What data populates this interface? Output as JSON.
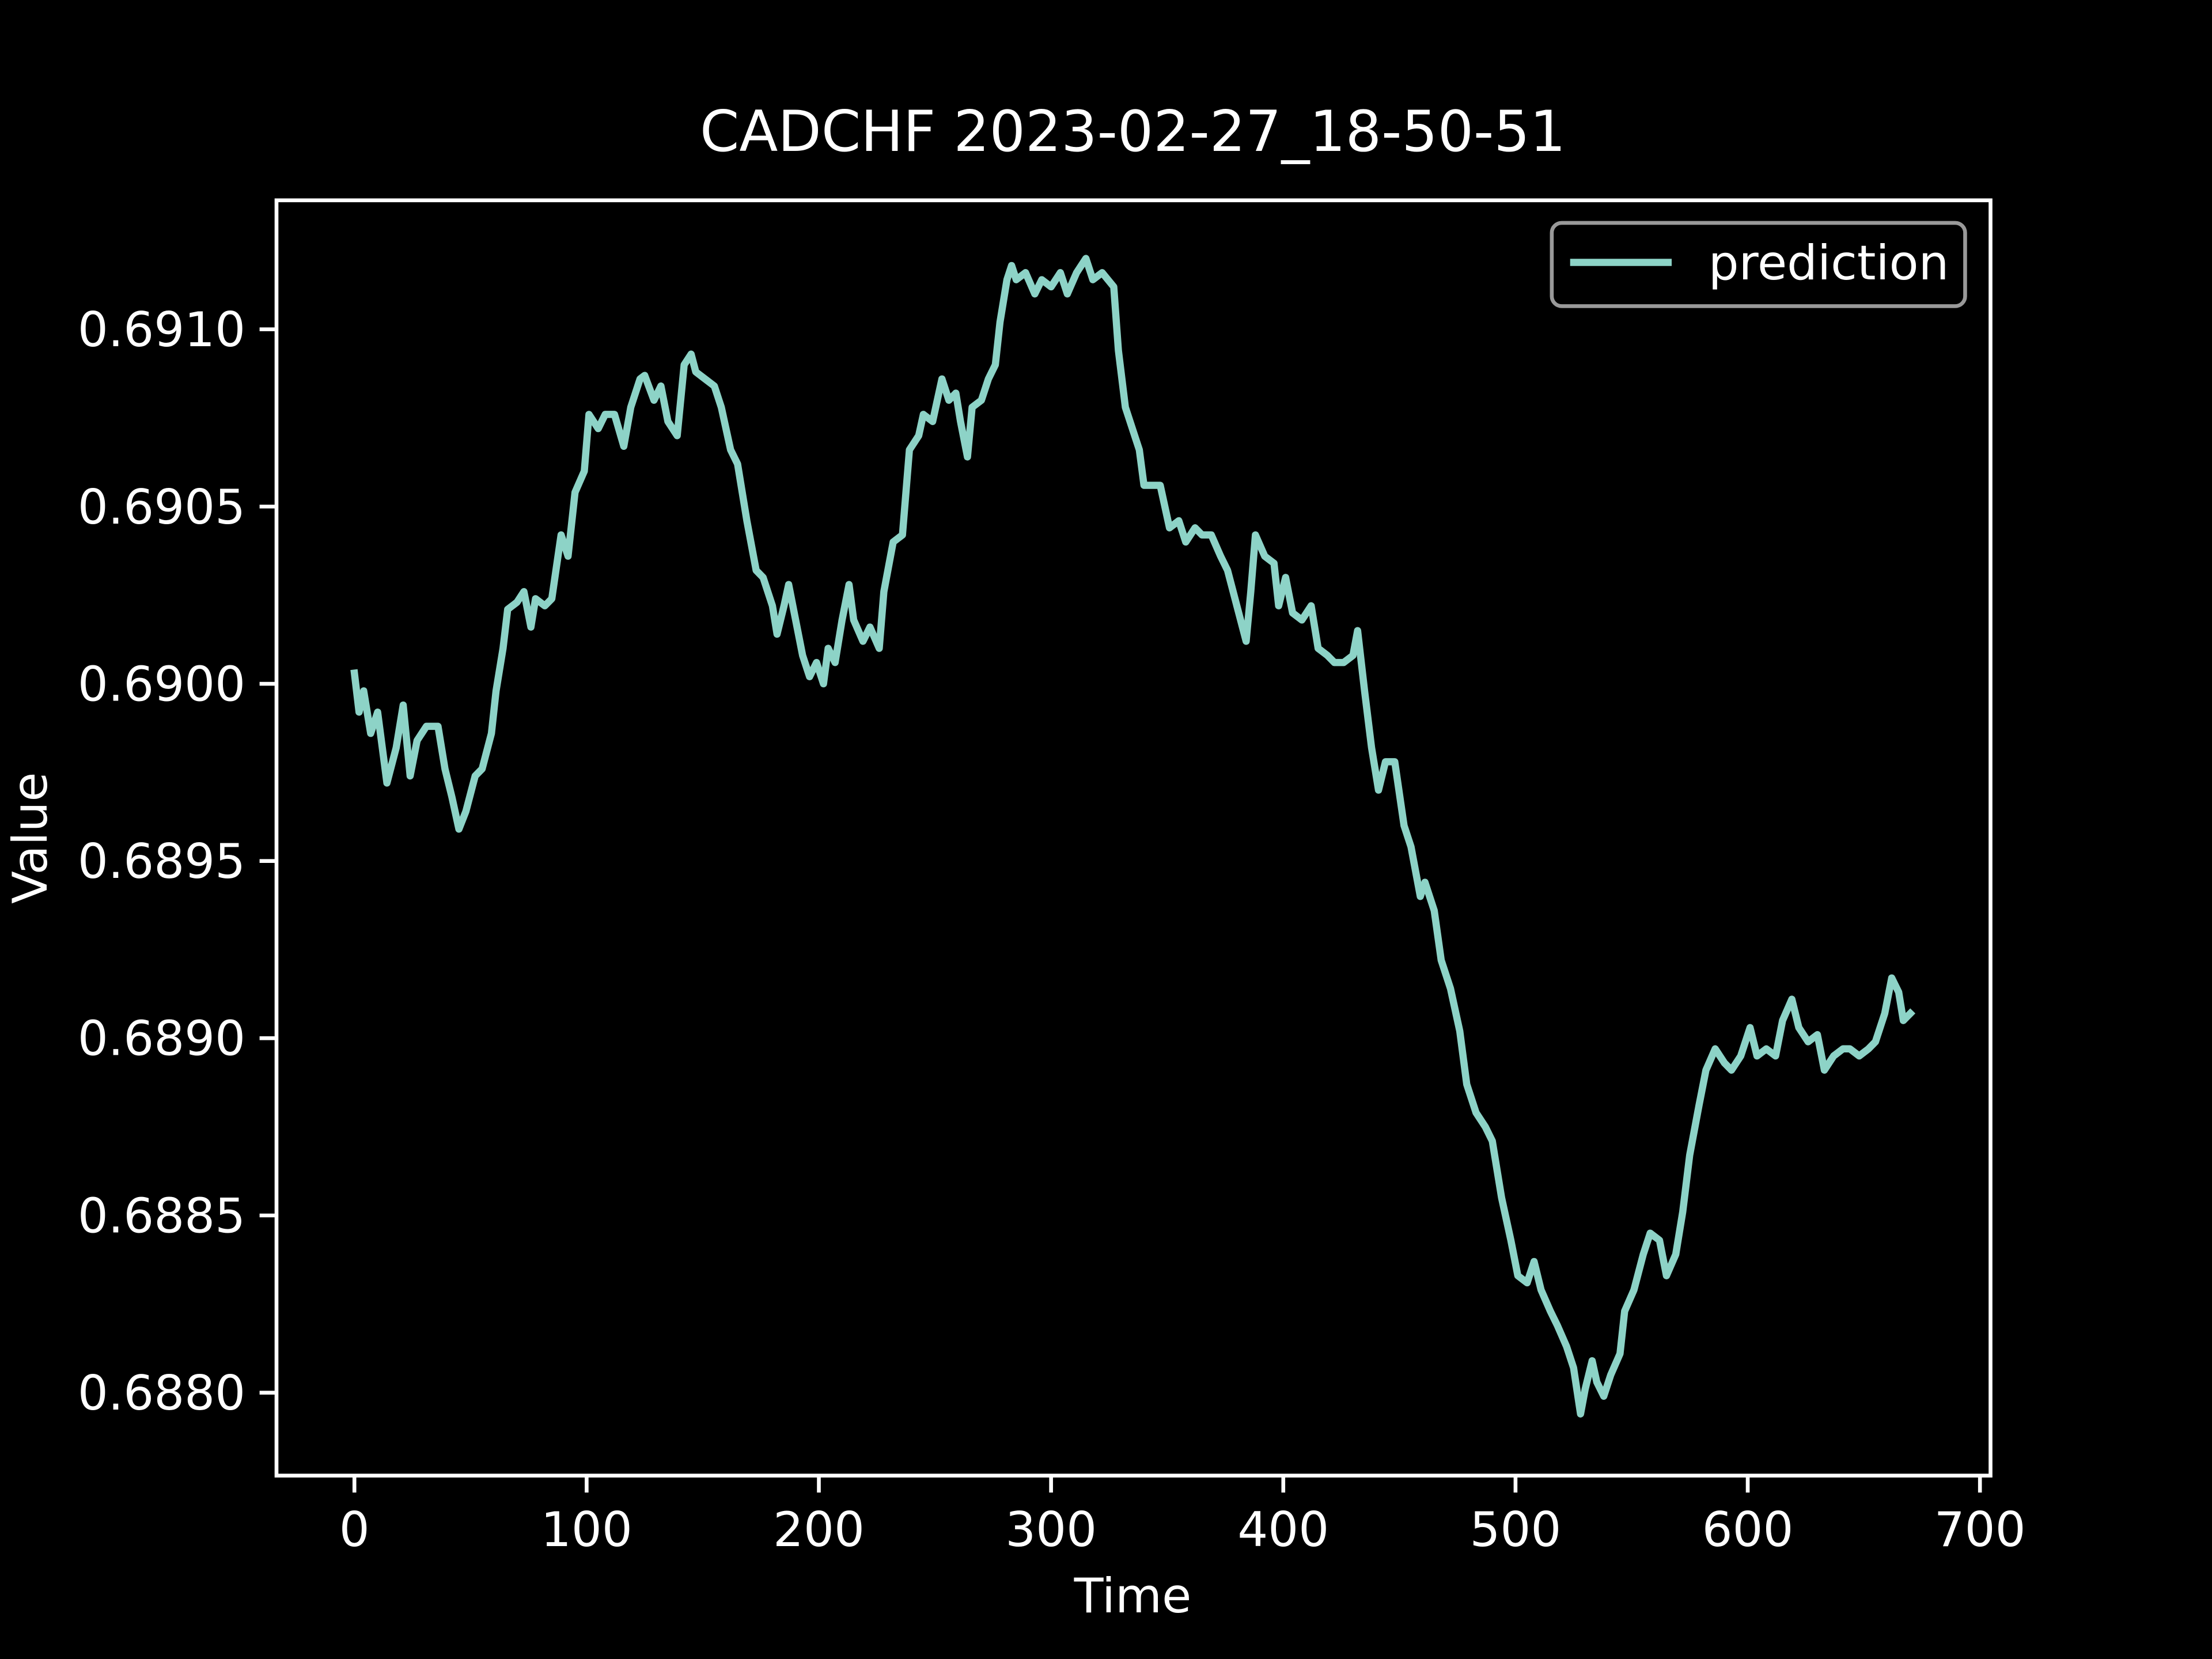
{
  "chart_data": {
    "type": "line",
    "title": "CADCHF 2023-02-27_18-50-51",
    "xlabel": "Time",
    "ylabel": "Value",
    "legend": "upper right",
    "grid": false,
    "xlim": [
      -33.55,
      704.55
    ],
    "xticks": [
      0,
      100,
      200,
      300,
      400,
      500,
      600,
      700
    ],
    "ylim": [
      0.687766,
      0.691364
    ],
    "yticks": [
      {
        "value": 0.688,
        "label": "0.6880"
      },
      {
        "value": 0.6885,
        "label": "0.6885"
      },
      {
        "value": 0.689,
        "label": "0.6890"
      },
      {
        "value": 0.6895,
        "label": "0.6895"
      },
      {
        "value": 0.69,
        "label": "0.6900"
      },
      {
        "value": 0.6905,
        "label": "0.6905"
      },
      {
        "value": 0.691,
        "label": "0.6910"
      }
    ],
    "x": [
      0,
      2,
      4,
      7,
      10,
      14,
      18,
      21,
      24,
      27,
      31,
      36,
      39,
      42,
      45,
      48,
      52,
      55,
      59,
      61,
      64,
      66,
      70,
      73,
      76,
      78,
      82,
      85,
      89,
      92,
      95,
      99,
      101,
      105,
      108,
      112,
      116,
      119,
      123,
      125,
      129,
      132,
      135,
      139,
      142,
      145,
      147,
      151,
      155,
      158,
      162,
      165,
      169,
      173,
      176,
      180,
      182,
      185,
      187,
      190,
      193,
      196,
      199,
      202,
      204,
      207,
      210,
      213,
      215,
      219,
      222,
      226,
      228,
      232,
      236,
      239,
      243,
      245,
      249,
      253,
      256,
      259,
      261,
      264,
      266,
      270,
      273,
      276,
      278,
      281,
      283,
      285,
      289,
      293,
      296,
      300,
      304,
      307,
      311,
      315,
      318,
      322,
      327,
      329,
      332,
      334,
      338,
      340,
      344,
      347,
      351,
      355,
      358,
      362,
      365,
      369,
      373,
      376,
      380,
      384,
      386,
      388,
      392,
      396,
      398,
      401,
      404,
      408,
      412,
      415,
      419,
      422,
      426,
      430,
      432,
      435,
      438,
      441,
      444,
      448,
      452,
      455,
      459,
      461,
      465,
      468,
      472,
      476,
      479,
      483,
      487,
      490,
      494,
      498,
      501,
      505,
      508,
      511,
      515,
      518,
      522,
      525,
      528,
      530,
      533,
      535,
      538,
      541,
      545,
      547,
      551,
      555,
      558,
      562,
      565,
      569,
      572,
      575,
      579,
      582,
      586,
      590,
      593,
      597,
      601,
      604,
      608,
      612,
      615,
      619,
      622,
      626,
      630,
      633,
      637,
      641,
      644,
      648,
      652,
      655,
      659,
      662,
      665,
      667,
      670
    ],
    "series": [
      {
        "name": "prediction",
        "color": "#8dd3c7",
        "values": [
          0.69003,
          0.68992,
          0.68998,
          0.68986,
          0.68992,
          0.68972,
          0.68982,
          0.68994,
          0.68974,
          0.68984,
          0.68988,
          0.68988,
          0.68976,
          0.68968,
          0.68959,
          0.68964,
          0.68974,
          0.68976,
          0.68986,
          0.68998,
          0.6901,
          0.69021,
          0.69023,
          0.69026,
          0.69016,
          0.69024,
          0.69022,
          0.69024,
          0.69042,
          0.69036,
          0.69054,
          0.6906,
          0.69076,
          0.69072,
          0.69076,
          0.69076,
          0.69067,
          0.69078,
          0.69086,
          0.69087,
          0.6908,
          0.69084,
          0.69074,
          0.6907,
          0.6909,
          0.69093,
          0.69088,
          0.69086,
          0.69084,
          0.69078,
          0.69066,
          0.69062,
          0.69046,
          0.69032,
          0.6903,
          0.69022,
          0.69014,
          0.69022,
          0.69028,
          0.69018,
          0.69008,
          0.69002,
          0.69006,
          0.69,
          0.6901,
          0.69006,
          0.69018,
          0.69028,
          0.69018,
          0.69012,
          0.69016,
          0.6901,
          0.69026,
          0.6904,
          0.69042,
          0.69066,
          0.6907,
          0.69076,
          0.69074,
          0.69086,
          0.6908,
          0.69082,
          0.69074,
          0.69064,
          0.69078,
          0.6908,
          0.69086,
          0.6909,
          0.69102,
          0.69114,
          0.69118,
          0.69114,
          0.69116,
          0.6911,
          0.69114,
          0.69112,
          0.69116,
          0.6911,
          0.69116,
          0.6912,
          0.69114,
          0.69116,
          0.69112,
          0.69094,
          0.69078,
          0.69074,
          0.69066,
          0.69056,
          0.69056,
          0.69056,
          0.69044,
          0.69046,
          0.6904,
          0.69044,
          0.69042,
          0.69042,
          0.69036,
          0.69032,
          0.69022,
          0.69012,
          0.69026,
          0.69042,
          0.69036,
          0.69034,
          0.69022,
          0.6903,
          0.6902,
          0.69018,
          0.69022,
          0.6901,
          0.69008,
          0.69006,
          0.69006,
          0.69008,
          0.69015,
          0.68998,
          0.68982,
          0.6897,
          0.68978,
          0.68978,
          0.6896,
          0.68954,
          0.6894,
          0.68944,
          0.68936,
          0.68922,
          0.68914,
          0.68902,
          0.68887,
          0.68879,
          0.68875,
          0.68871,
          0.68855,
          0.68843,
          0.68833,
          0.68831,
          0.68837,
          0.68829,
          0.68823,
          0.68819,
          0.68813,
          0.68807,
          0.68794,
          0.68801,
          0.68809,
          0.68803,
          0.68799,
          0.68805,
          0.68811,
          0.68823,
          0.68829,
          0.68839,
          0.68845,
          0.68843,
          0.68833,
          0.68839,
          0.68851,
          0.68867,
          0.68881,
          0.68891,
          0.68897,
          0.68893,
          0.68891,
          0.68895,
          0.68903,
          0.68895,
          0.68897,
          0.68895,
          0.68905,
          0.68911,
          0.68903,
          0.68899,
          0.68901,
          0.68891,
          0.68895,
          0.68897,
          0.68897,
          0.68895,
          0.68897,
          0.68899,
          0.68907,
          0.68917,
          0.68913,
          0.68905,
          0.68907
        ]
      }
    ]
  }
}
